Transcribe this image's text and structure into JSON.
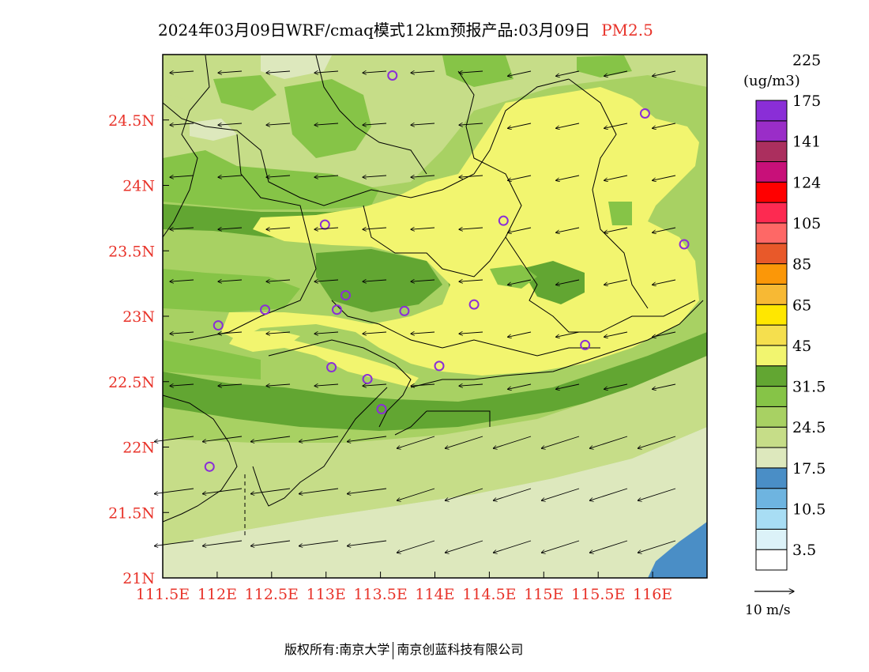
{
  "title": {
    "main": "2024年03月09日WRF/cmaq模式12km预报产品:03月09日",
    "pollutant": "PM2.5",
    "pollutant_color": "#e8332a"
  },
  "map": {
    "region": "Guangdong (Pearl River Delta)",
    "lon_range": [
      111.5,
      116.5
    ],
    "lat_range": [
      21.0,
      25.0
    ],
    "x_ticks": [
      "111.5E",
      "112E",
      "112.5E",
      "113E",
      "113.5E",
      "114E",
      "114.5E",
      "115E",
      "115.5E",
      "116E"
    ],
    "y_ticks": [
      "21N",
      "21.5N",
      "22N",
      "22.5N",
      "23N",
      "23.5N",
      "24N",
      "24.5N"
    ],
    "tick_color": "#e8332a",
    "stations": [
      {
        "lon": 113.61,
        "lat": 24.84
      },
      {
        "lon": 115.93,
        "lat": 24.55
      },
      {
        "lon": 114.63,
        "lat": 23.73
      },
      {
        "lon": 112.99,
        "lat": 23.7
      },
      {
        "lon": 116.29,
        "lat": 23.55
      },
      {
        "lon": 113.18,
        "lat": 23.16
      },
      {
        "lon": 112.44,
        "lat": 23.05
      },
      {
        "lon": 113.1,
        "lat": 23.05
      },
      {
        "lon": 113.72,
        "lat": 23.04
      },
      {
        "lon": 114.36,
        "lat": 23.09
      },
      {
        "lon": 112.01,
        "lat": 22.93
      },
      {
        "lon": 115.38,
        "lat": 22.78
      },
      {
        "lon": 113.05,
        "lat": 22.61
      },
      {
        "lon": 114.04,
        "lat": 22.62
      },
      {
        "lon": 113.38,
        "lat": 22.52
      },
      {
        "lon": 113.51,
        "lat": 22.29
      },
      {
        "lon": 111.93,
        "lat": 21.85
      }
    ]
  },
  "legend": {
    "unit": "(ug/m3)",
    "colors": [
      "#ffffff",
      "#dcf2f8",
      "#a8ddf4",
      "#6eb4e0",
      "#4a8ec6",
      "#dde8bd",
      "#c6dd88",
      "#a8d163",
      "#86c447",
      "#62a632",
      "#f2f56f",
      "#f5df4e",
      "#ffe700",
      "#f7b934",
      "#fb9708",
      "#e8592a",
      "#fe6866",
      "#fd2a51",
      "#ff0000",
      "#c81079",
      "#ab2f5e",
      "#9a2dc8",
      "#8a2ed7"
    ],
    "labels": [
      "3.5",
      "10.5",
      "17.5",
      "24.5",
      "31.5",
      "45",
      "65",
      "85",
      "105",
      "124",
      "141",
      "175",
      "225"
    ]
  },
  "wind": {
    "reference_label": "10 m/s"
  },
  "footer": {
    "left": "版权所有:南京大学",
    "right": "南京创蓝科技有限公司"
  }
}
